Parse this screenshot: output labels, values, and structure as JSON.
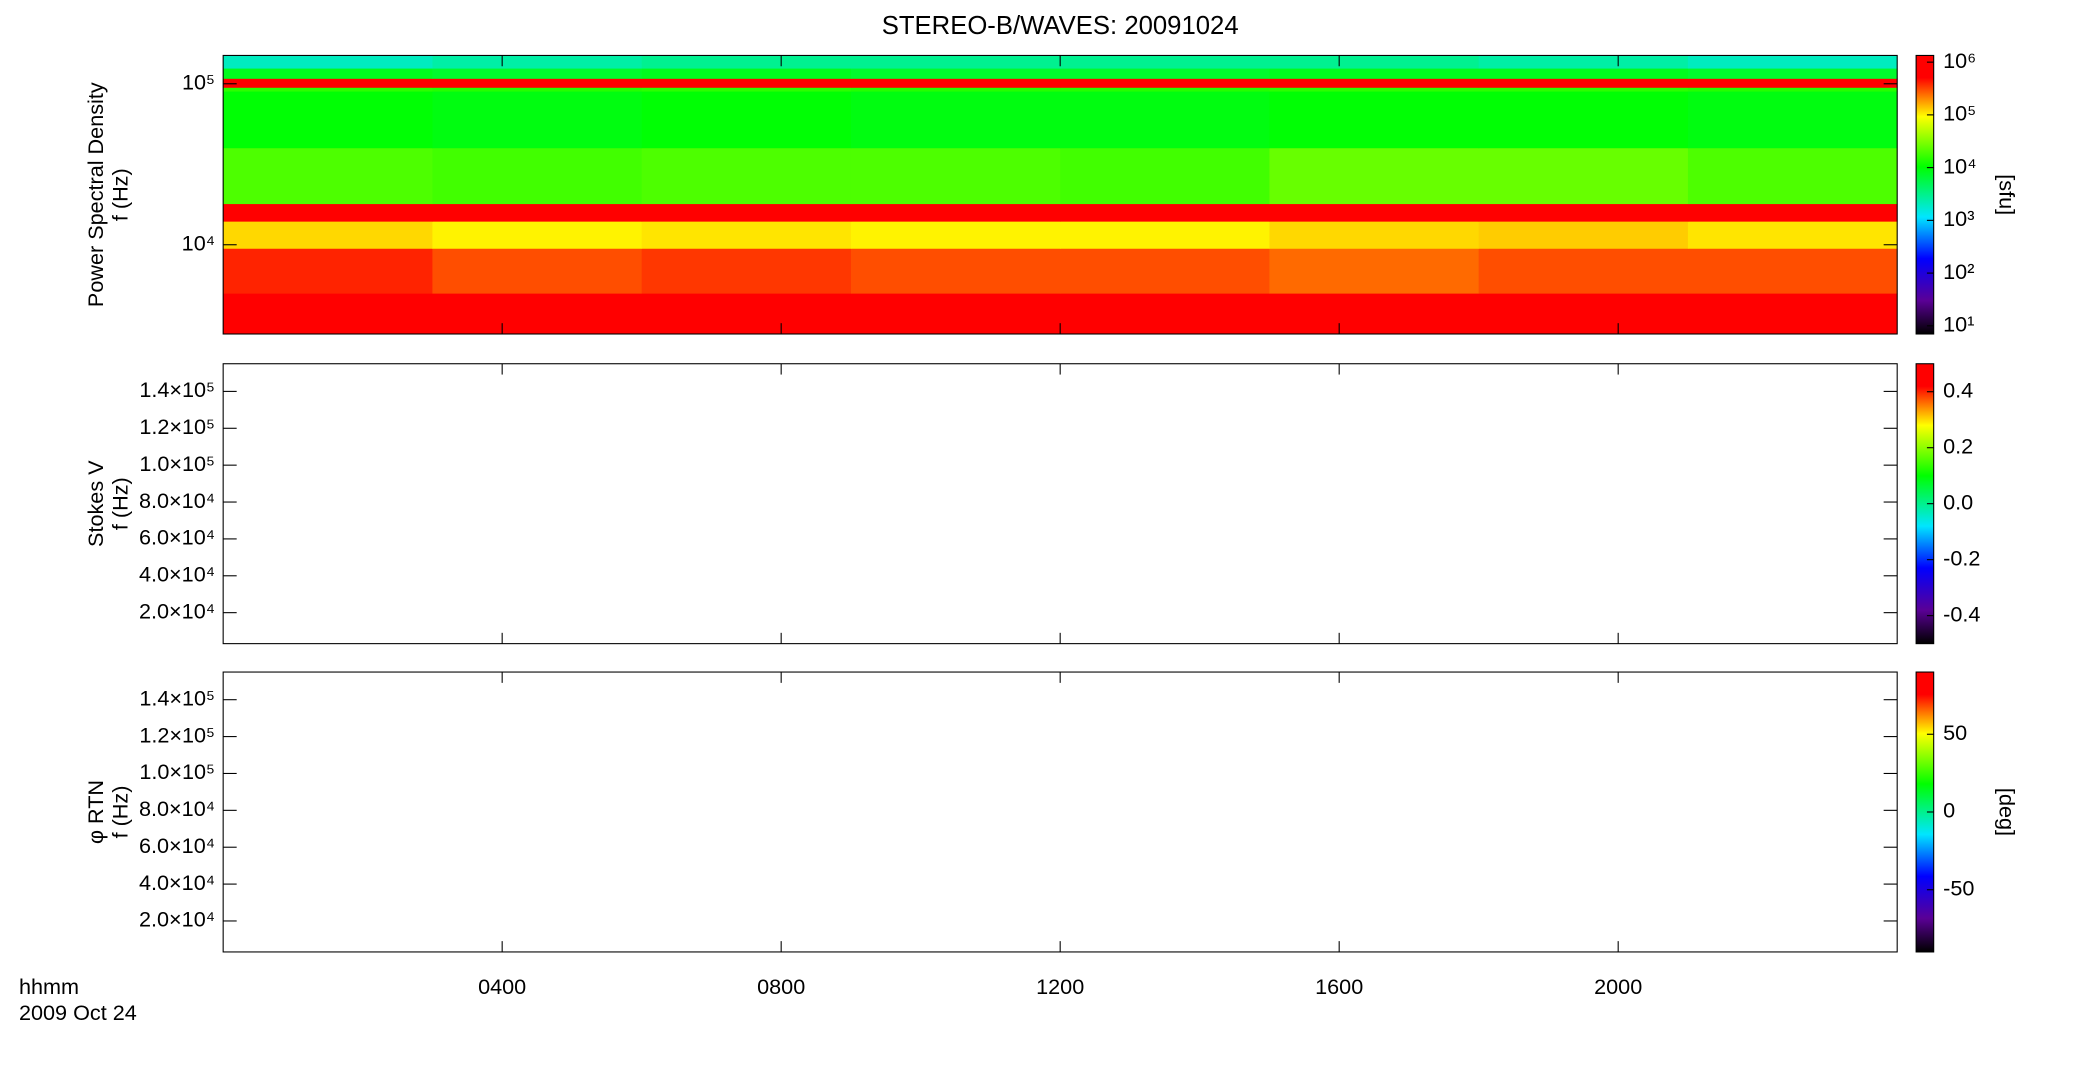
{
  "chart_data": [
    {
      "type": "heatmap",
      "title": "STEREO-B/WAVES: 20091024",
      "ylabel": [
        "Power Spectral Density",
        "f (Hz)"
      ],
      "ylog": true,
      "ylim": [
        2790,
        150000
      ],
      "yticks": [
        {
          "value": 10000,
          "label": "10⁴"
        },
        {
          "value": 100000,
          "label": "10⁵"
        }
      ],
      "xlim": [
        0,
        24
      ],
      "x_bins": [
        0,
        3,
        6,
        9,
        12,
        15,
        18,
        21,
        24
      ],
      "y_bins": [
        2790,
        5000,
        9500,
        14000,
        18000,
        40000,
        90000,
        95000,
        108000,
        125000,
        150000
      ],
      "z": [
        [
          1000000,
          900000,
          1000000,
          900000,
          800000,
          800000,
          800000,
          900000
        ],
        [
          400000,
          300000,
          350000,
          300000,
          300000,
          250000,
          300000,
          300000
        ],
        [
          120000,
          100000,
          110000,
          100000,
          100000,
          120000,
          130000,
          110000
        ],
        [
          1000000,
          1000000,
          1000000,
          1000000,
          1000000,
          1000000,
          1000000,
          1000000
        ],
        [
          20000,
          18000,
          20000,
          20000,
          18000,
          25000,
          25000,
          20000
        ],
        [
          10000,
          9000,
          10000,
          9000,
          9000,
          10000,
          10000,
          9000
        ],
        [
          15000,
          14000,
          15000,
          14000,
          14000,
          15000,
          15000,
          14000
        ],
        [
          800000,
          800000,
          800000,
          800000,
          800000,
          800000,
          800000,
          800000
        ],
        [
          8000,
          7000,
          8000,
          7000,
          7000,
          8000,
          8000,
          7000
        ],
        [
          2000,
          2500,
          3000,
          3000,
          3000,
          3000,
          2500,
          2000
        ]
      ],
      "zlog": true,
      "zlim": [
        7,
        1340000
      ],
      "zticks": [
        {
          "value": 10,
          "label": "10¹"
        },
        {
          "value": 100,
          "label": "10²"
        },
        {
          "value": 1000,
          "label": "10³"
        },
        {
          "value": 10000,
          "label": "10⁴"
        },
        {
          "value": 100000,
          "label": "10⁵"
        },
        {
          "value": 1000000,
          "label": "10⁶"
        }
      ],
      "zlabel": "[sfu]",
      "colormap": [
        "#000000",
        "#5a0096",
        "#0000ff",
        "#00e6ff",
        "#00ff00",
        "#ffff00",
        "#ff0000",
        "#ff0000"
      ]
    },
    {
      "type": "heatmap",
      "ylabel": [
        "Stokes V",
        "f (Hz)"
      ],
      "ylim": [
        3200,
        155000
      ],
      "yticks": [
        {
          "value": 20000,
          "label": "2.0×10⁴"
        },
        {
          "value": 40000,
          "label": "4.0×10⁴"
        },
        {
          "value": 60000,
          "label": "6.0×10⁴"
        },
        {
          "value": 80000,
          "label": "8.0×10⁴"
        },
        {
          "value": 100000,
          "label": "1.0×10⁵"
        },
        {
          "value": 120000,
          "label": "1.2×10⁵"
        },
        {
          "value": 140000,
          "label": "1.4×10⁵"
        }
      ],
      "xlim": [
        0,
        24
      ],
      "zlim": [
        -0.5,
        0.5
      ],
      "zticks": [
        -0.4,
        -0.2,
        {
          "value": 0,
          "label": "0.0"
        },
        0.2,
        0.4
      ],
      "colormap": [
        "#000000",
        "#5a0096",
        "#0000ff",
        "#00e6ff",
        "#00ff00",
        "#ffff00",
        "#ff0000",
        "#ff0000"
      ]
    },
    {
      "type": "heatmap",
      "ylabel": [
        "φ RTN",
        "f (Hz)"
      ],
      "ylim": [
        3200,
        155000
      ],
      "yticks": [
        {
          "value": 20000,
          "label": "2.0×10⁴"
        },
        {
          "value": 40000,
          "label": "4.0×10⁴"
        },
        {
          "value": 60000,
          "label": "6.0×10⁴"
        },
        {
          "value": 80000,
          "label": "8.0×10⁴"
        },
        {
          "value": 100000,
          "label": "1.0×10⁵"
        },
        {
          "value": 120000,
          "label": "1.2×10⁵"
        },
        {
          "value": 140000,
          "label": "1.4×10⁵"
        }
      ],
      "xlim": [
        0,
        24
      ],
      "xticks": [
        {
          "value": 4,
          "label": "0400"
        },
        {
          "value": 8,
          "label": "0800"
        },
        {
          "value": 12,
          "label": "1200"
        },
        {
          "value": 16,
          "label": "1600"
        },
        {
          "value": 20,
          "label": "2000"
        }
      ],
      "xlabel": [
        "hhmm",
        "2009 Oct 24"
      ],
      "zlim": [
        -90,
        90
      ],
      "zticks": [
        -50,
        0,
        50
      ],
      "zlabel": "[deg]",
      "colormap": [
        "#000000",
        "#5a0096",
        "#0000ff",
        "#00e6ff",
        "#00ff00",
        "#ffff00",
        "#ff0000",
        "#ff0000"
      ]
    }
  ]
}
